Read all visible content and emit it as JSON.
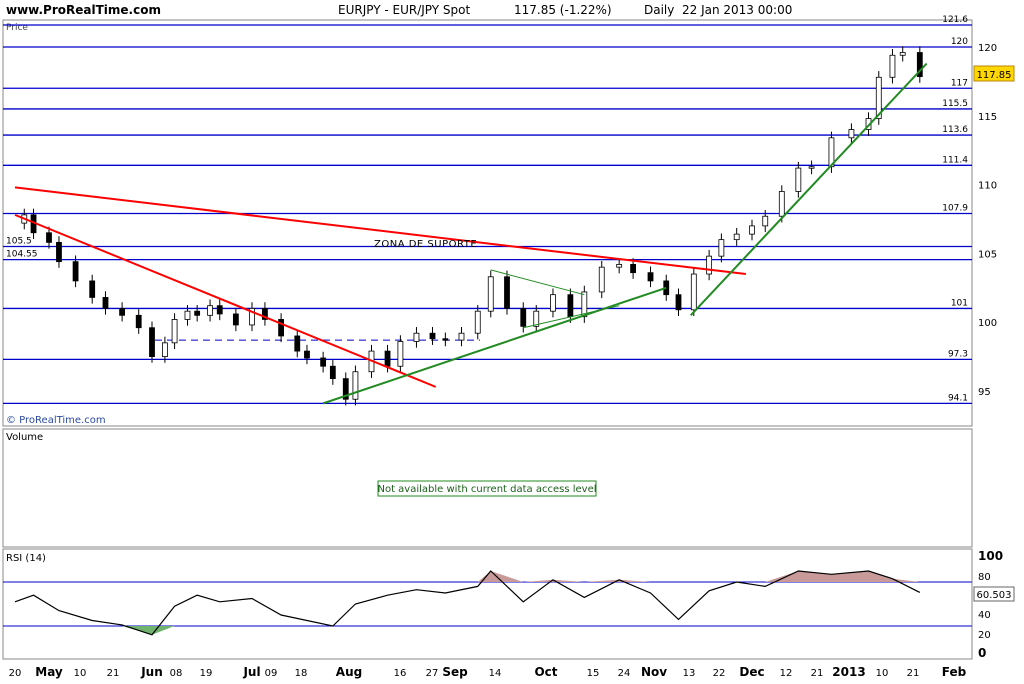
{
  "header": {
    "site": "www.ProRealTime.com",
    "instrument": "EURJPY - EUR/JPY Spot",
    "last_change": "117.85 (-1.22%)",
    "period": "Daily",
    "datetime": "22 Jan 2013 00:00"
  },
  "price_panel": {
    "label": "Price",
    "watermark": "© ProRealTime.com",
    "last_price": "117.85",
    "support_zone_label": "ZONA DE SUPORTE"
  },
  "volume_panel": {
    "label": "Volume",
    "notice": "Not available with current data access level"
  },
  "rsi_panel": {
    "label": "RSI (14)",
    "last_value": "60.503"
  },
  "colors": {
    "grid_line": "#0000cc",
    "resistance_trend": "#ff0000",
    "support_trend": "#228b22",
    "candle_body_up": "#ffffff",
    "candle_body_down": "#000000",
    "rsi_overbought_fill": "#c99a9a",
    "rsi_oversold_fill": "#6fb36f",
    "last_price_badge": "#ffd700"
  },
  "chart_data": [
    {
      "type": "candlestick",
      "panel": "price",
      "title": "EURJPY - EUR/JPY Spot",
      "x_tick_labels": [
        "20",
        "May",
        "10",
        "21",
        "Jun",
        "08",
        "19",
        "Jul",
        "09",
        "18",
        "Aug",
        "16",
        "27",
        "Sep",
        "14",
        "Oct",
        "15",
        "24",
        "Nov",
        "13",
        "22",
        "Dec",
        "12",
        "21",
        "2013",
        "10",
        "21",
        "Feb"
      ],
      "y_ticks": [
        95,
        100,
        105,
        110,
        115,
        120
      ],
      "ylim": [
        93.5,
        121.8
      ],
      "horizontal_levels": [
        121.6,
        120,
        117,
        115.5,
        113.6,
        111.4,
        107.9,
        105.5,
        104.55,
        101,
        97.3,
        94.1
      ],
      "level_labels": [
        "121.6",
        "120",
        "117",
        "115.5",
        "113.6",
        "111.4",
        "107.9",
        "105.5",
        "104.55",
        "101",
        "97.3",
        "94.1"
      ],
      "dashed_level": 98.7,
      "trendlines": [
        {
          "color": "red",
          "from": [
            "Apr 20",
            107.8
          ],
          "to": [
            "Aug 28",
            95.3
          ]
        },
        {
          "color": "red",
          "from": [
            "Apr 20",
            109.8
          ],
          "to": [
            "Dec 01",
            103.5
          ]
        },
        {
          "color": "green",
          "from": [
            "Jul 24",
            94.1
          ],
          "to": [
            "Nov 05",
            102.5
          ]
        },
        {
          "color": "green",
          "from": [
            "Nov 13",
            100.5
          ],
          "to": [
            "Jan 24",
            118.8
          ]
        }
      ],
      "close_series": {
        "x": [
          "Apr 20",
          "Apr 23",
          "Apr 26",
          "May 01",
          "May 04",
          "May 09",
          "May 14",
          "May 18",
          "May 23",
          "May 28",
          "Jun 01",
          "Jun 05",
          "Jun 08",
          "Jun 12",
          "Jun 15",
          "Jun 19",
          "Jun 22",
          "Jun 27",
          "Jul 02",
          "Jul 06",
          "Jul 11",
          "Jul 16",
          "Jul 19",
          "Jul 24",
          "Jul 27",
          "Jul 31",
          "Aug 03",
          "Aug 08",
          "Aug 13",
          "Aug 17",
          "Aug 22",
          "Aug 27",
          "Aug 31",
          "Sep 05",
          "Sep 10",
          "Sep 14",
          "Sep 19",
          "Sep 24",
          "Sep 28",
          "Oct 03",
          "Oct 08",
          "Oct 12",
          "Oct 17",
          "Oct 22",
          "Oct 26",
          "Oct 31",
          "Nov 05",
          "Nov 09",
          "Nov 14",
          "Nov 19",
          "Nov 23",
          "Nov 28",
          "Dec 03",
          "Dec 07",
          "Dec 12",
          "Dec 17",
          "Dec 21",
          "Dec 27",
          "Jan 02",
          "Jan 07",
          "Jan 10",
          "Jan 14",
          "Jan 17",
          "Jan 22"
        ],
        "close": [
          107.2,
          107.8,
          106.5,
          105.8,
          104.4,
          103.0,
          101.8,
          101.0,
          100.5,
          99.6,
          97.5,
          98.5,
          100.2,
          100.8,
          100.5,
          101.2,
          100.6,
          99.8,
          101.0,
          100.2,
          99.0,
          97.9,
          97.4,
          96.8,
          95.9,
          94.4,
          96.4,
          97.9,
          96.8,
          98.6,
          99.2,
          98.8,
          98.7,
          99.2,
          100.8,
          103.3,
          101.0,
          99.7,
          100.8,
          102.0,
          100.4,
          102.2,
          104.0,
          104.2,
          103.6,
          103.0,
          102.0,
          100.9,
          103.5,
          104.8,
          106.0,
          106.4,
          107.0,
          107.7,
          109.5,
          111.2,
          111.3,
          113.4,
          114.0,
          114.8,
          117.8,
          119.4,
          119.6,
          117.85
        ]
      }
    },
    {
      "type": "line",
      "panel": "rsi",
      "title": "RSI (14)",
      "y_ticks": [
        0,
        20,
        40,
        60,
        80,
        100
      ],
      "ylim": [
        0,
        100
      ],
      "levels": [
        70,
        30
      ],
      "series": [
        {
          "x": [
            "Apr 20",
            "Apr 26",
            "May 04",
            "May 14",
            "May 23",
            "Jun 01",
            "Jun 08",
            "Jun 15",
            "Jun 22",
            "Jul 02",
            "Jul 11",
            "Jul 19",
            "Jul 27",
            "Aug 03",
            "Aug 13",
            "Aug 22",
            "Aug 31",
            "Sep 10",
            "Sep 14",
            "Sep 24",
            "Oct 03",
            "Oct 12",
            "Oct 22",
            "Oct 31",
            "Nov 09",
            "Nov 19",
            "Nov 28",
            "Dec 07",
            "Dec 17",
            "Dec 27",
            "Jan 07",
            "Jan 14",
            "Jan 22"
          ],
          "y": [
            52,
            58,
            44,
            35,
            31,
            22,
            48,
            58,
            52,
            55,
            40,
            35,
            30,
            50,
            58,
            63,
            60,
            66,
            80,
            52,
            72,
            56,
            72,
            60,
            36,
            62,
            70,
            66,
            80,
            77,
            80,
            73,
            60.503
          ]
        }
      ]
    }
  ]
}
